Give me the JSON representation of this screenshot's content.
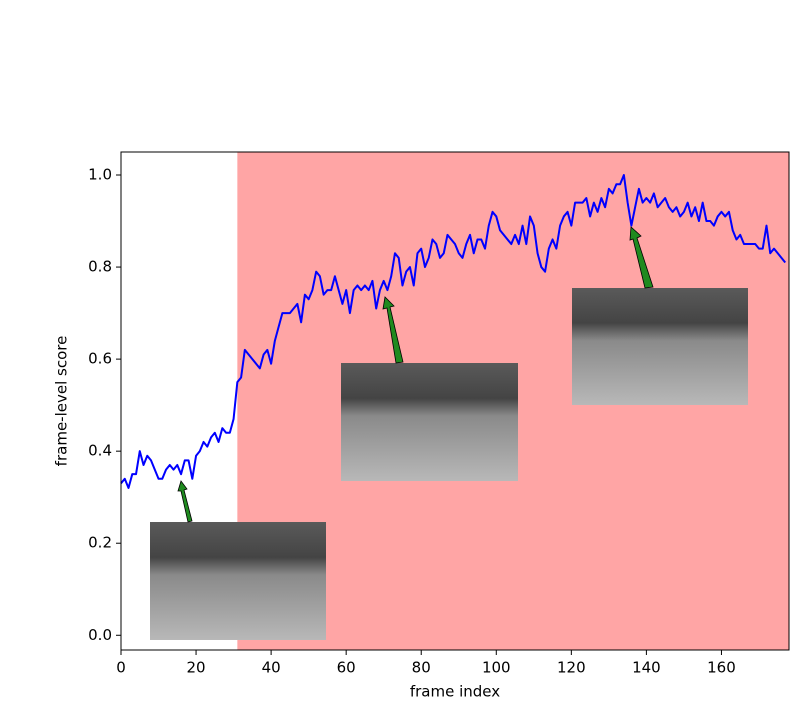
{
  "chart_data": {
    "type": "line",
    "x_label": "frame index",
    "y_label": "frame-level score",
    "x": [
      0,
      1,
      2,
      3,
      4,
      5,
      6,
      7,
      8,
      9,
      10,
      11,
      12,
      13,
      14,
      15,
      16,
      17,
      18,
      19,
      20,
      21,
      22,
      23,
      24,
      25,
      26,
      27,
      28,
      29,
      30,
      31,
      32,
      33,
      34,
      35,
      36,
      37,
      38,
      39,
      40,
      41,
      42,
      43,
      44,
      45,
      46,
      47,
      48,
      49,
      50,
      51,
      52,
      53,
      54,
      55,
      56,
      57,
      58,
      59,
      60,
      61,
      62,
      63,
      64,
      65,
      66,
      67,
      68,
      69,
      70,
      71,
      72,
      73,
      74,
      75,
      76,
      77,
      78,
      79,
      80,
      81,
      82,
      83,
      84,
      85,
      86,
      87,
      88,
      89,
      90,
      91,
      92,
      93,
      94,
      95,
      96,
      97,
      98,
      99,
      100,
      101,
      102,
      103,
      104,
      105,
      106,
      107,
      108,
      109,
      110,
      111,
      112,
      113,
      114,
      115,
      116,
      117,
      118,
      119,
      120,
      121,
      122,
      123,
      124,
      125,
      126,
      127,
      128,
      129,
      130,
      131,
      132,
      133,
      134,
      135,
      136,
      137,
      138,
      139,
      140,
      141,
      142,
      143,
      144,
      145,
      146,
      147,
      148,
      149,
      150,
      151,
      152,
      153,
      154,
      155,
      156,
      157,
      158,
      159,
      160,
      161,
      162,
      163,
      164,
      165,
      166,
      167,
      168,
      169,
      170,
      171,
      172,
      173,
      174,
      175,
      176,
      177
    ],
    "values": [
      0.33,
      0.34,
      0.32,
      0.35,
      0.35,
      0.4,
      0.37,
      0.39,
      0.38,
      0.36,
      0.34,
      0.34,
      0.36,
      0.37,
      0.36,
      0.37,
      0.35,
      0.38,
      0.38,
      0.34,
      0.39,
      0.4,
      0.42,
      0.41,
      0.43,
      0.44,
      0.42,
      0.45,
      0.44,
      0.44,
      0.47,
      0.55,
      0.56,
      0.62,
      0.61,
      0.6,
      0.59,
      0.58,
      0.61,
      0.62,
      0.59,
      0.64,
      0.67,
      0.7,
      0.7,
      0.7,
      0.71,
      0.72,
      0.68,
      0.74,
      0.73,
      0.75,
      0.79,
      0.78,
      0.74,
      0.75,
      0.75,
      0.78,
      0.75,
      0.72,
      0.75,
      0.7,
      0.75,
      0.76,
      0.75,
      0.76,
      0.75,
      0.77,
      0.71,
      0.75,
      0.77,
      0.75,
      0.78,
      0.83,
      0.82,
      0.76,
      0.79,
      0.8,
      0.76,
      0.83,
      0.84,
      0.8,
      0.82,
      0.86,
      0.85,
      0.82,
      0.83,
      0.87,
      0.86,
      0.85,
      0.83,
      0.82,
      0.85,
      0.87,
      0.83,
      0.86,
      0.86,
      0.84,
      0.89,
      0.92,
      0.91,
      0.88,
      0.87,
      0.86,
      0.85,
      0.87,
      0.85,
      0.89,
      0.85,
      0.91,
      0.89,
      0.83,
      0.8,
      0.79,
      0.84,
      0.86,
      0.84,
      0.89,
      0.91,
      0.92,
      0.89,
      0.94,
      0.94,
      0.94,
      0.95,
      0.91,
      0.94,
      0.92,
      0.95,
      0.93,
      0.97,
      0.96,
      0.98,
      0.98,
      1.0,
      0.94,
      0.89,
      0.93,
      0.97,
      0.94,
      0.95,
      0.94,
      0.96,
      0.93,
      0.94,
      0.95,
      0.93,
      0.92,
      0.93,
      0.91,
      0.92,
      0.94,
      0.91,
      0.93,
      0.9,
      0.94,
      0.9,
      0.9,
      0.89,
      0.91,
      0.92,
      0.91,
      0.92,
      0.88,
      0.86,
      0.87,
      0.85,
      0.85,
      0.85,
      0.85,
      0.84,
      0.84,
      0.89,
      0.83,
      0.84,
      0.83,
      0.82,
      0.81
    ],
    "color": "#0000ff",
    "shaded_region": [
      31,
      178
    ],
    "shaded_color": "#ffa5a5",
    "xlim": [
      0,
      178
    ],
    "xticks": [
      0,
      20,
      40,
      60,
      80,
      100,
      120,
      140,
      160
    ],
    "ylim": [
      -0.032,
      1.05
    ],
    "yticks": [
      {
        "value": 0,
        "label": "0.0"
      },
      0.2,
      0.4,
      0.6,
      0.8,
      {
        "value": 1,
        "label": "1.0"
      }
    ]
  }
}
